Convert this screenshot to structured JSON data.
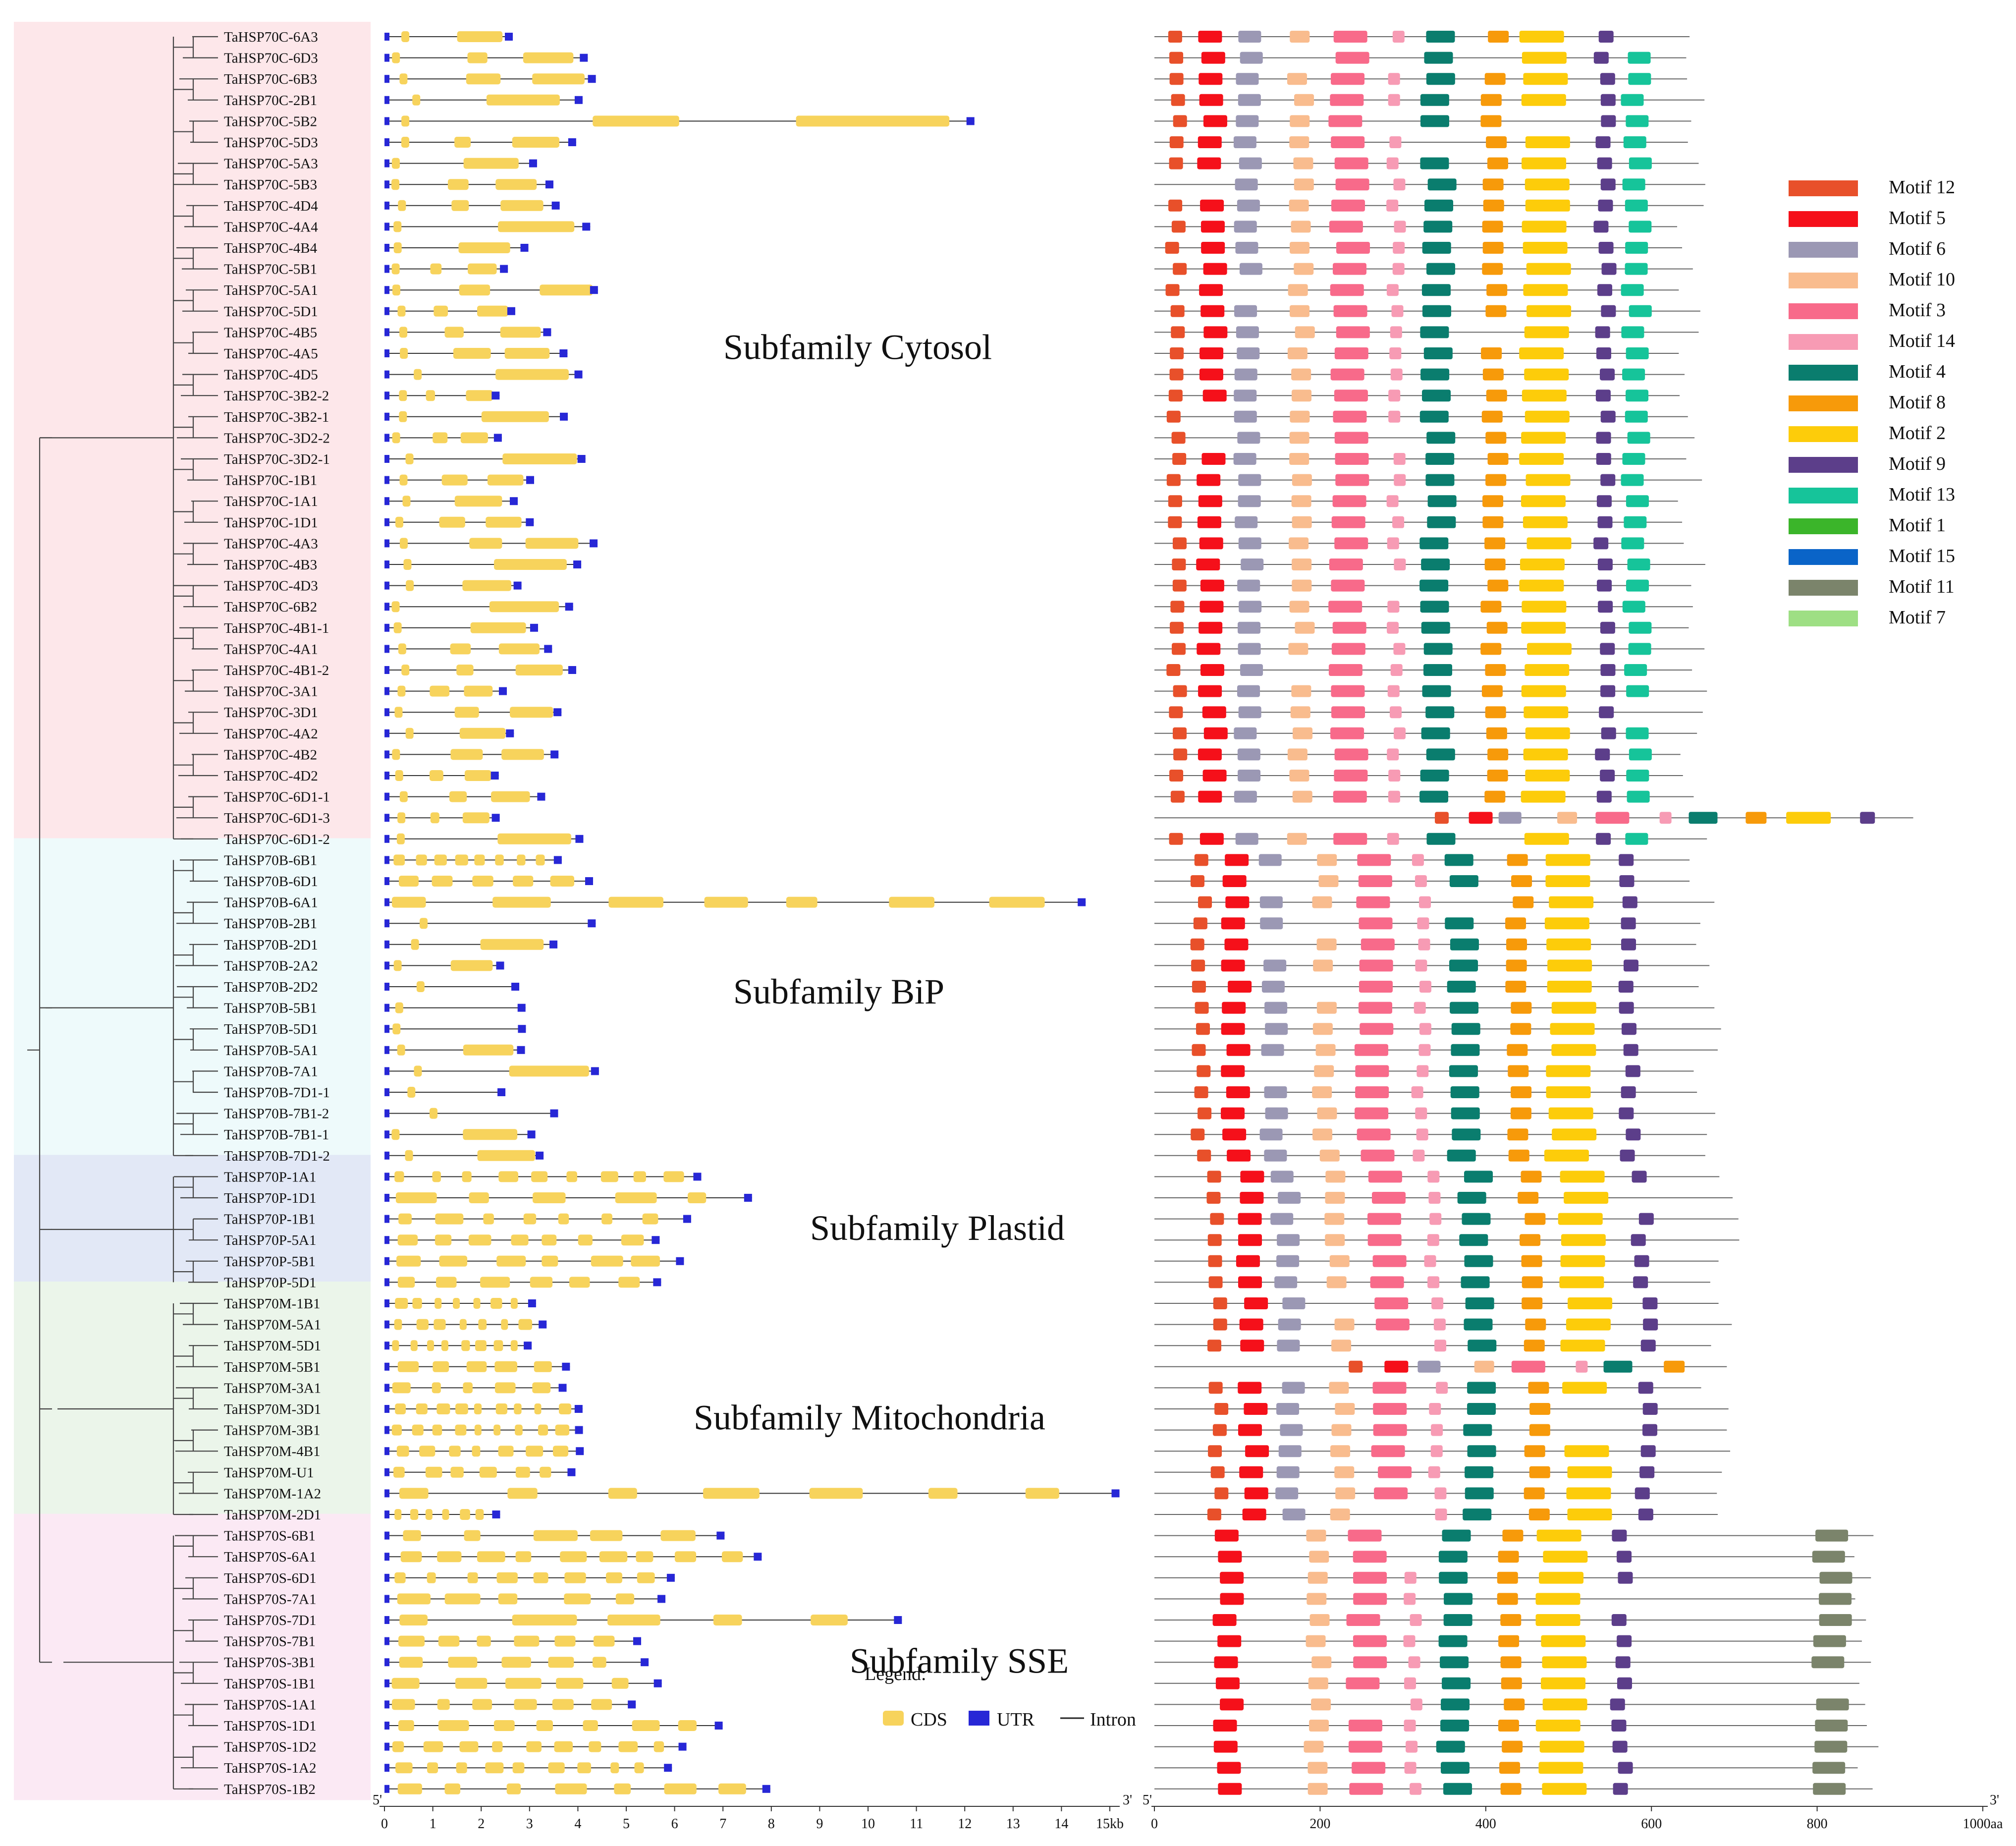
{
  "subfamilies": [
    {
      "name": "Cytosol",
      "title": "Subfamily Cytosol",
      "bg": "#fde7ea",
      "genes": [
        "TaHSP70C-6A3",
        "TaHSP70C-6D3",
        "TaHSP70C-6B3",
        "TaHSP70C-2B1",
        "TaHSP70C-5B2",
        "TaHSP70C-5D3",
        "TaHSP70C-5A3",
        "TaHSP70C-5B3",
        "TaHSP70C-4D4",
        "TaHSP70C-4A4",
        "TaHSP70C-4B4",
        "TaHSP70C-5B1",
        "TaHSP70C-5A1",
        "TaHSP70C-5D1",
        "TaHSP70C-4B5",
        "TaHSP70C-4A5",
        "TaHSP70C-4D5",
        "TaHSP70C-3B2-2",
        "TaHSP70C-3B2-1",
        "TaHSP70C-3D2-2",
        "TaHSP70C-3D2-1",
        "TaHSP70C-1B1",
        "TaHSP70C-1A1",
        "TaHSP70C-1D1",
        "TaHSP70C-4A3",
        "TaHSP70C-4B3",
        "TaHSP70C-4D3",
        "TaHSP70C-6B2",
        "TaHSP70C-4B1-1",
        "TaHSP70C-4A1",
        "TaHSP70C-4B1-2",
        "TaHSP70C-3A1",
        "TaHSP70C-3D1",
        "TaHSP70C-4A2",
        "TaHSP70C-4B2",
        "TaHSP70C-4D2",
        "TaHSP70C-6D1-1",
        "TaHSP70C-6D1-3",
        "TaHSP70C-6D1-2"
      ]
    },
    {
      "name": "BiP",
      "title": "Subfamily BiP",
      "bg": "#eefafb",
      "genes": [
        "TaHSP70B-6B1",
        "TaHSP70B-6D1",
        "TaHSP70B-6A1",
        "TaHSP70B-2B1",
        "TaHSP70B-2D1",
        "TaHSP70B-2A2",
        "TaHSP70B-2D2",
        "TaHSP70B-5B1",
        "TaHSP70B-5D1",
        "TaHSP70B-5A1",
        "TaHSP70B-7A1",
        "TaHSP70B-7D1-1",
        "TaHSP70B-7B1-2",
        "TaHSP70B-7B1-1",
        "TaHSP70B-7D1-2"
      ]
    },
    {
      "name": "Plastid",
      "title": "Subfamily Plastid",
      "bg": "#e2e8f6",
      "genes": [
        "TaHSP70P-1A1",
        "TaHSP70P-1D1",
        "TaHSP70P-1B1",
        "TaHSP70P-5A1",
        "TaHSP70P-5B1",
        "TaHSP70P-5D1"
      ]
    },
    {
      "name": "Mitochondria",
      "title": "Subfamily Mitochondria",
      "bg": "#ebf5ea",
      "genes": [
        "TaHSP70M-1B1",
        "TaHSP70M-5A1",
        "TaHSP70M-5D1",
        "TaHSP70M-5B1",
        "TaHSP70M-3A1",
        "TaHSP70M-3D1",
        "TaHSP70M-3B1",
        "TaHSP70M-4B1",
        "TaHSP70M-U1",
        "TaHSP70M-1A2",
        "TaHSP70M-2D1"
      ]
    },
    {
      "name": "SSE",
      "title": "Subfamily SSE",
      "bg": "#fbe9f4",
      "genes": [
        "TaHSP70S-6B1",
        "TaHSP70S-6A1",
        "TaHSP70S-6D1",
        "TaHSP70S-7A1",
        "TaHSP70S-7D1",
        "TaHSP70S-7B1",
        "TaHSP70S-3B1",
        "TaHSP70S-1B1",
        "TaHSP70S-1A1",
        "TaHSP70S-1D1",
        "TaHSP70S-1D2",
        "TaHSP70S-1A2",
        "TaHSP70S-1B2"
      ]
    }
  ],
  "gene_axis": {
    "ticks": [
      "0",
      "1",
      "2",
      "3",
      "4",
      "5",
      "6",
      "7",
      "8",
      "9",
      "10",
      "11",
      "12",
      "13",
      "14",
      "15kb"
    ],
    "start_label": "5'",
    "end_label": "3'"
  },
  "motif_axis": {
    "ticks": [
      "0",
      "200",
      "400",
      "600",
      "800",
      "1000aa"
    ],
    "start_label": "5'",
    "end_label": "3'"
  },
  "gene_legend": {
    "title": "Legend:",
    "items": [
      {
        "label": "CDS",
        "color": "#f7d35c"
      },
      {
        "label": "UTR",
        "color": "#2727d6"
      },
      {
        "label": "Intron",
        "color": "#222222"
      }
    ]
  },
  "motif_legend": [
    {
      "label": "Motif 12",
      "color": "#e8502a"
    },
    {
      "label": "Motif 5",
      "color": "#f5101a"
    },
    {
      "label": "Motif 6",
      "color": "#9b98b4"
    },
    {
      "label": "Motif 10",
      "color": "#f9bc8e"
    },
    {
      "label": "Motif 3",
      "color": "#f86a8a"
    },
    {
      "label": "Motif 14",
      "color": "#f79bb4"
    },
    {
      "label": "Motif 4",
      "color": "#0a7d6e"
    },
    {
      "label": "Motif 8",
      "color": "#f79a0a"
    },
    {
      "label": "Motif 2",
      "color": "#fdcc0a"
    },
    {
      "label": "Motif 9",
      "color": "#5c3e8a"
    },
    {
      "label": "Motif 13",
      "color": "#16c49a"
    },
    {
      "label": "Motif 1",
      "color": "#3bb52a"
    },
    {
      "label": "Motif 15",
      "color": "#0a64c8"
    },
    {
      "label": "Motif 11",
      "color": "#7b846b"
    },
    {
      "label": "Motif 7",
      "color": "#9edf84"
    }
  ]
}
